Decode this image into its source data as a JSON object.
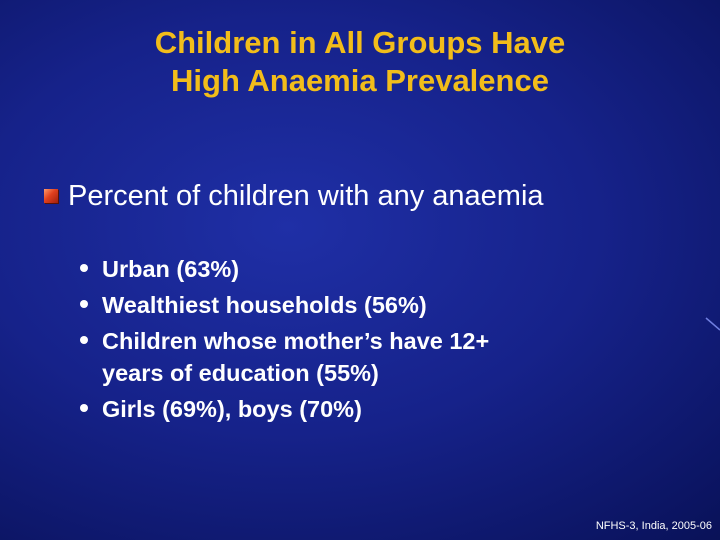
{
  "title": {
    "line1": "Children in All Groups Have",
    "line2": "High Anaemia Prevalence"
  },
  "heading": "Percent of children with any anaemia",
  "points": [
    {
      "lines": [
        "Urban (63%)"
      ]
    },
    {
      "lines": [
        "Wealthiest households (56%)"
      ]
    },
    {
      "lines": [
        "Children whose mother’s have 12+",
        "years of education (55%)"
      ]
    },
    {
      "lines": [
        "Girls (69%), boys (70%)"
      ]
    }
  ],
  "footer": "NFHS-3, India, 2005-06",
  "colors": {
    "title": "#f2bd1a",
    "text": "#ffffff",
    "background": "#16228a",
    "bullet": "#e0401e"
  },
  "icons": {
    "heading_bullet": "square-bullet-icon",
    "point_bullet": "dot-bullet-icon"
  }
}
